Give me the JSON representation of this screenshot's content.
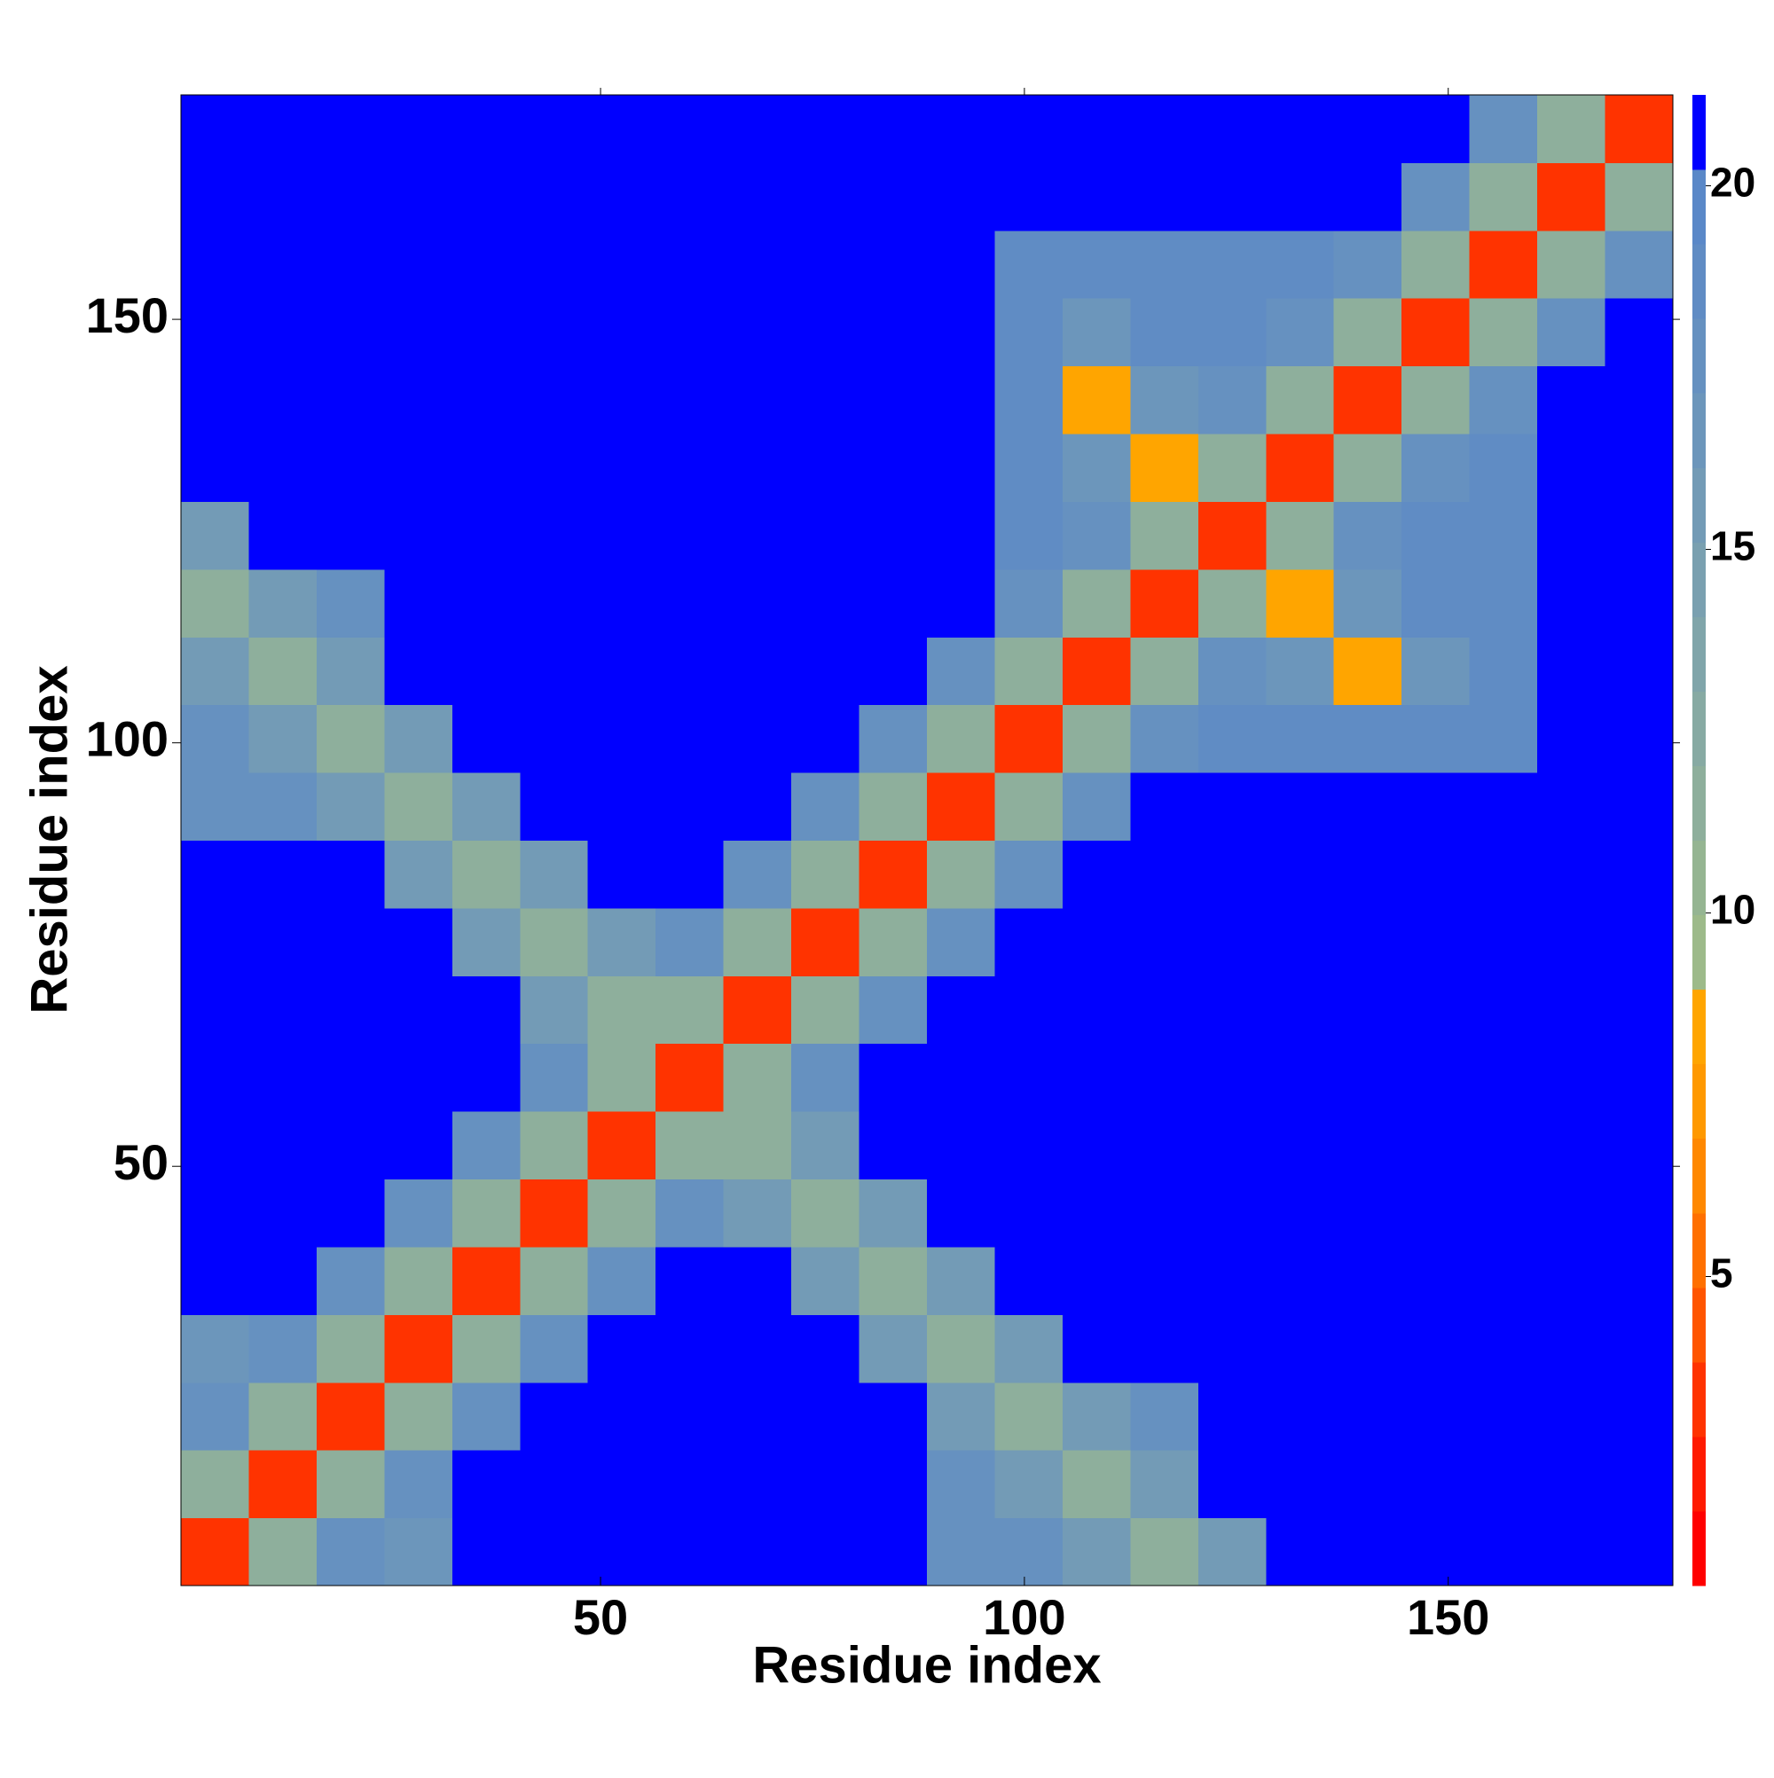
{
  "chart_data": {
    "type": "heatmap",
    "x_label": "Residue index",
    "y_label": "Residue index",
    "x": [
      4.5,
      12.5,
      20.5,
      28.5,
      36.5,
      44.5,
      52.5,
      60.5,
      68.5,
      76.5,
      84.5,
      92.5,
      100.5,
      108.5,
      116.5,
      124.5,
      132.5,
      140.5,
      148.5,
      156.5,
      164.5,
      172.5
    ],
    "y": [
      4.5,
      12.5,
      20.5,
      28.5,
      36.5,
      44.5,
      52.5,
      60.5,
      68.5,
      76.5,
      84.5,
      92.5,
      100.5,
      108.5,
      116.5,
      124.5,
      132.5,
      140.5,
      148.5,
      156.5,
      164.5,
      172.5
    ],
    "xlim": [
      0.5,
      176.5
    ],
    "ylim": [
      0.5,
      176.5
    ],
    "xticks": [
      50,
      100,
      150
    ],
    "yticks": [
      50,
      100,
      150
    ],
    "z": [
      [
        3,
        12,
        18,
        17,
        21,
        21,
        21,
        21,
        21,
        21,
        21,
        18,
        18,
        16,
        12,
        16,
        21,
        21,
        21,
        21,
        21,
        21
      ],
      [
        12,
        3,
        12,
        18,
        21,
        21,
        21,
        21,
        21,
        21,
        21,
        18,
        16,
        12,
        16,
        21,
        21,
        21,
        21,
        21,
        21,
        21
      ],
      [
        18,
        12,
        3,
        12,
        18,
        21,
        21,
        21,
        21,
        21,
        21,
        16,
        12,
        16,
        18,
        21,
        21,
        21,
        21,
        21,
        21,
        21
      ],
      [
        17,
        18,
        12,
        3,
        12,
        18,
        21,
        21,
        21,
        21,
        16,
        12,
        16,
        21,
        21,
        21,
        21,
        21,
        21,
        21,
        21,
        21
      ],
      [
        21,
        21,
        18,
        12,
        3,
        12,
        18,
        21,
        21,
        16,
        12,
        16,
        21,
        21,
        21,
        21,
        21,
        21,
        21,
        21,
        21,
        21
      ],
      [
        21,
        21,
        21,
        18,
        12,
        3,
        12,
        18,
        16,
        12,
        16,
        21,
        21,
        21,
        21,
        21,
        21,
        21,
        21,
        21,
        21,
        21
      ],
      [
        21,
        21,
        21,
        21,
        18,
        12,
        3,
        12,
        12,
        16,
        21,
        21,
        21,
        21,
        21,
        21,
        21,
        21,
        21,
        21,
        21,
        21
      ],
      [
        21,
        21,
        21,
        21,
        21,
        18,
        12,
        3,
        12,
        18,
        21,
        21,
        21,
        21,
        21,
        21,
        21,
        21,
        21,
        21,
        21,
        21
      ],
      [
        21,
        21,
        21,
        21,
        21,
        16,
        12,
        12,
        3,
        12,
        18,
        21,
        21,
        21,
        21,
        21,
        21,
        21,
        21,
        21,
        21,
        21
      ],
      [
        21,
        21,
        21,
        21,
        16,
        12,
        16,
        18,
        12,
        3,
        12,
        18,
        21,
        21,
        21,
        21,
        21,
        21,
        21,
        21,
        21,
        21
      ],
      [
        21,
        21,
        21,
        16,
        12,
        16,
        21,
        21,
        18,
        12,
        3,
        12,
        18,
        21,
        21,
        21,
        21,
        21,
        21,
        21,
        21,
        21
      ],
      [
        18,
        18,
        16,
        12,
        16,
        21,
        21,
        21,
        21,
        18,
        12,
        3,
        12,
        18,
        21,
        21,
        21,
        21,
        21,
        21,
        21,
        21
      ],
      [
        18,
        16,
        12,
        16,
        21,
        21,
        21,
        21,
        21,
        21,
        18,
        12,
        3,
        12,
        18,
        19,
        19,
        19,
        19,
        19,
        21,
        21
      ],
      [
        16,
        12,
        16,
        21,
        21,
        21,
        21,
        21,
        21,
        21,
        21,
        18,
        12,
        3,
        12,
        18,
        17,
        8,
        17,
        19,
        21,
        21
      ],
      [
        12,
        16,
        18,
        21,
        21,
        21,
        21,
        21,
        21,
        21,
        21,
        21,
        18,
        12,
        3,
        12,
        8,
        17,
        19,
        19,
        21,
        21
      ],
      [
        16,
        21,
        21,
        21,
        21,
        21,
        21,
        21,
        21,
        21,
        21,
        21,
        19,
        18,
        12,
        3,
        12,
        18,
        19,
        19,
        21,
        21
      ],
      [
        21,
        21,
        21,
        21,
        21,
        21,
        21,
        21,
        21,
        21,
        21,
        21,
        19,
        17,
        8,
        12,
        3,
        12,
        18,
        19,
        21,
        21
      ],
      [
        21,
        21,
        21,
        21,
        21,
        21,
        21,
        21,
        21,
        21,
        21,
        21,
        19,
        8,
        17,
        18,
        12,
        3,
        12,
        18,
        21,
        21
      ],
      [
        21,
        21,
        21,
        21,
        21,
        21,
        21,
        21,
        21,
        21,
        21,
        21,
        19,
        17,
        19,
        19,
        18,
        12,
        3,
        12,
        18,
        21
      ],
      [
        21,
        21,
        21,
        21,
        21,
        21,
        21,
        21,
        21,
        21,
        21,
        21,
        19,
        19,
        19,
        19,
        19,
        18,
        12,
        3,
        12,
        18
      ],
      [
        21,
        21,
        21,
        21,
        21,
        21,
        21,
        21,
        21,
        21,
        21,
        21,
        21,
        21,
        21,
        21,
        21,
        21,
        18,
        12,
        3,
        12
      ],
      [
        21,
        21,
        21,
        21,
        21,
        21,
        21,
        21,
        21,
        21,
        21,
        21,
        21,
        21,
        21,
        21,
        21,
        21,
        21,
        18,
        12,
        3
      ]
    ],
    "colorbar": {
      "lim": [
        0.75,
        21.25
      ],
      "ticks": [
        5,
        10,
        15,
        20
      ],
      "colors": [
        "#ff0000",
        "#ff1a00",
        "#ff3300",
        "#ff5500",
        "#ff7000",
        "#ff8800",
        "#ff9900",
        "#ffa500",
        "#9dba8a",
        "#95b592",
        "#8eaf9c",
        "#87aaa3",
        "#80a5aa",
        "#7aa0b0",
        "#739bb6",
        "#6c96bb",
        "#6691c0",
        "#608cc4",
        "#5a88c8",
        "#0000ff"
      ]
    }
  }
}
